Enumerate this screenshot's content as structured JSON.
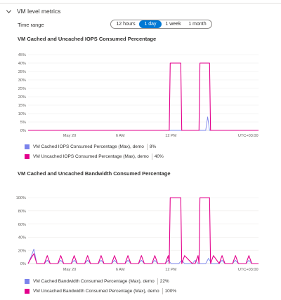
{
  "section": {
    "title": "VM level metrics",
    "icon": "chevron-down-icon"
  },
  "time_range": {
    "label": "Time range",
    "options": [
      "12 hours",
      "1 day",
      "1 week",
      "1 month"
    ],
    "selected": "1 day",
    "accent": "#0078d4"
  },
  "charts": [
    {
      "title": "VM Cached and Uncached IOPS Consumed Percentage",
      "timezone_label": "UTC+03:00",
      "legend": [
        {
          "label": "VM Cached IOPS Consumed Percentage (Max), demo",
          "value": "8%",
          "color": "#7b83eb"
        },
        {
          "label": "VM Uncached IOPS Consumed Percentage (Max), demo",
          "value": "40%",
          "color": "#e3008c"
        }
      ]
    },
    {
      "title": "VM Cached and Uncached Bandwidth Consumed Percentage",
      "timezone_label": "UTC+03:00",
      "legend": [
        {
          "label": "VM Cached Bandwidth Consumed Percentage (Max), demo",
          "value": "22%",
          "color": "#7b83eb"
        },
        {
          "label": "VM Uncached Bandwidth Consumed Percentage (Max), demo",
          "value": "100%",
          "color": "#e3008c"
        }
      ]
    }
  ],
  "chart_data": [
    {
      "type": "line",
      "title": "VM Cached and Uncached IOPS Consumed Percentage",
      "x_tick_labels": [
        "May 20",
        "6 AM",
        "12 PM",
        "UTC+03:00"
      ],
      "y_tick_labels": [
        "0%",
        "5%",
        "10%",
        "15%",
        "20%",
        "25%",
        "30%",
        "35%",
        "40%",
        "45%"
      ],
      "ylim": [
        0,
        45
      ],
      "grid": true,
      "x_range": [
        0,
        24
      ],
      "series": [
        {
          "name": "VM Cached IOPS Consumed Percentage (Max), demo",
          "color": "#7b83eb",
          "x": [
            0,
            18.5,
            18.7,
            18.9,
            24
          ],
          "values": [
            0,
            0,
            8,
            0,
            0
          ]
        },
        {
          "name": "VM Uncached IOPS Consumed Percentage (Max), demo",
          "color": "#e3008c",
          "x": [
            0,
            14.7,
            14.8,
            15.9,
            16.0,
            17.8,
            17.9,
            18.9,
            19.0,
            24
          ],
          "values": [
            0,
            0,
            40,
            40,
            0,
            0,
            40,
            40,
            0,
            0
          ]
        }
      ]
    },
    {
      "type": "line",
      "title": "VM Cached and Uncached Bandwidth Consumed Percentage",
      "x_tick_labels": [
        "May 20",
        "6 AM",
        "12 PM",
        "UTC+03:00"
      ],
      "y_tick_labels": [
        "0%",
        "20%",
        "40%",
        "60%",
        "80%",
        "100%"
      ],
      "ylim": [
        0,
        100
      ],
      "grid": true,
      "x_range": [
        0,
        24
      ],
      "series": [
        {
          "name": "VM Cached Bandwidth Consumed Percentage (Max), demo",
          "color": "#7b83eb",
          "x": [
            0,
            0.3,
            0.6,
            0.9,
            1.7,
            2.0,
            2.3,
            3.1,
            3.4,
            3.7,
            4.5,
            4.8,
            5.1,
            5.9,
            6.2,
            6.5,
            7.3,
            7.6,
            7.9,
            8.7,
            9.0,
            9.3,
            10.1,
            10.4,
            10.7,
            11.5,
            11.8,
            12.1,
            12.9,
            13.2,
            13.5,
            14.3,
            14.6,
            14.9,
            15.7,
            16.0,
            16.3,
            17.1,
            17.4,
            17.7,
            18.5,
            18.8,
            19.1,
            19.9,
            20.2,
            20.5,
            21.3,
            21.6,
            21.9,
            22.7,
            23.0,
            23.3,
            24
          ],
          "values": [
            0,
            10,
            22,
            0,
            0,
            5,
            0,
            0,
            5,
            0,
            0,
            5,
            0,
            0,
            5,
            0,
            0,
            5,
            0,
            0,
            5,
            0,
            0,
            5,
            0,
            0,
            5,
            0,
            0,
            5,
            0,
            0,
            5,
            0,
            0,
            5,
            0,
            0,
            5,
            0,
            0,
            8,
            0,
            0,
            5,
            0,
            0,
            5,
            0,
            0,
            5,
            0,
            0
          ]
        },
        {
          "name": "VM Uncached Bandwidth Consumed Percentage (Max), demo",
          "color": "#e3008c",
          "x": [
            0,
            0.3,
            0.6,
            0.9,
            1.7,
            2.0,
            2.3,
            3.1,
            3.4,
            3.7,
            4.5,
            4.8,
            5.1,
            5.9,
            6.2,
            6.5,
            7.3,
            7.6,
            7.9,
            8.7,
            9.0,
            9.3,
            10.1,
            10.4,
            10.7,
            11.5,
            11.8,
            12.1,
            12.9,
            13.2,
            13.5,
            14.3,
            14.6,
            14.7,
            14.8,
            15.9,
            16.0,
            16.3,
            17.1,
            17.4,
            17.7,
            17.8,
            17.9,
            18.9,
            19.0,
            19.3,
            19.9,
            20.2,
            20.5,
            21.3,
            21.6,
            21.9,
            22.7,
            23.0,
            23.3,
            24
          ],
          "values": [
            0,
            8,
            15,
            0,
            0,
            12,
            0,
            0,
            12,
            0,
            0,
            12,
            0,
            0,
            12,
            0,
            0,
            12,
            0,
            0,
            12,
            0,
            0,
            12,
            0,
            0,
            12,
            0,
            0,
            12,
            0,
            0,
            12,
            0,
            100,
            100,
            0,
            12,
            0,
            0,
            12,
            0,
            100,
            100,
            0,
            12,
            0,
            12,
            0,
            0,
            12,
            0,
            0,
            12,
            0,
            0
          ]
        }
      ]
    }
  ]
}
